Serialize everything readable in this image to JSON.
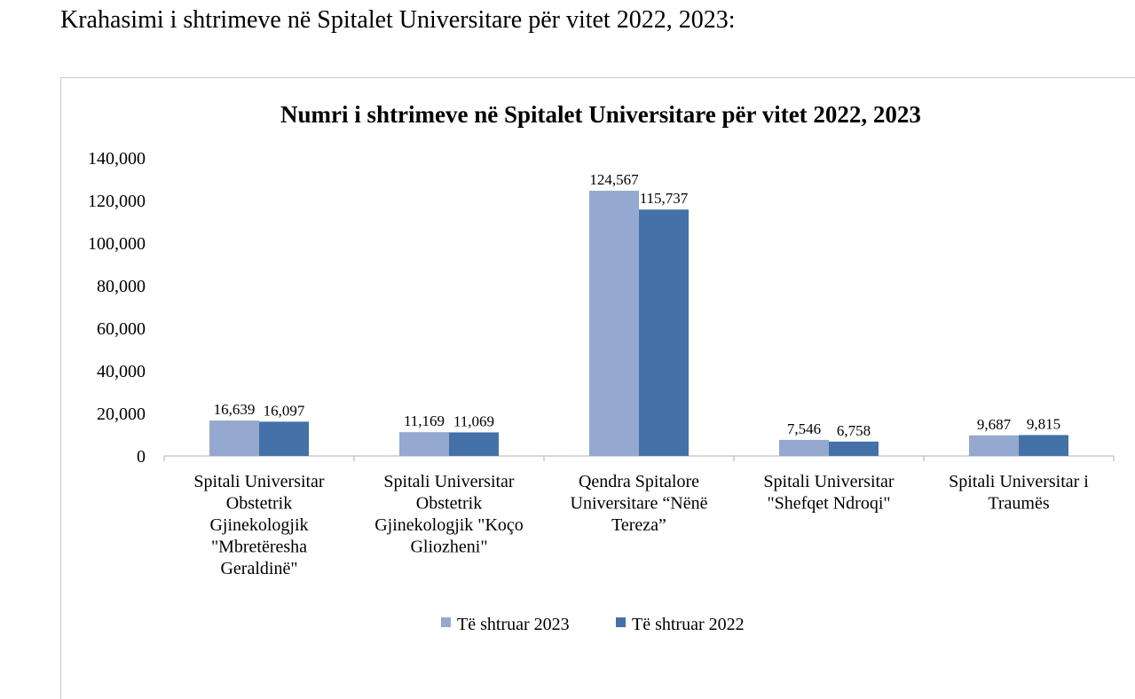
{
  "page": {
    "heading": "Krahasimi i shtrimeve në Spitalet Universitare për vitet 2022, 2023:"
  },
  "colors": {
    "series_2023": "#94a9cf",
    "series_2022": "#4471a8",
    "axis": "#bfbfbf"
  },
  "chart_data": {
    "type": "bar",
    "title": "Numri i shtrimeve në Spitalet Universitare për vitet 2022, 2023",
    "xlabel": "",
    "ylabel": "",
    "ylim": [
      0,
      140000
    ],
    "yticks": [
      0,
      20000,
      40000,
      60000,
      80000,
      100000,
      120000,
      140000
    ],
    "ytick_labels": [
      "0",
      "20,000",
      "40,000",
      "60,000",
      "80,000",
      "100,000",
      "120,000",
      "140,000"
    ],
    "grid": false,
    "legend_position": "bottom",
    "categories": [
      "Spitali Universitar Obstetrik Gjinekologjik \"Mbretëresha Geraldinë\"",
      "Spitali Universitar Obstetrik Gjinekologjik \"Koço Gliozheni\"",
      "Qendra Spitalore Universitare “Nënë Tereza”",
      "Spitali Universitar \"Shefqet Ndroqi\"",
      "Spitali Universitar i Traumës"
    ],
    "category_lines": [
      [
        "Spitali Universitar",
        "Obstetrik",
        "Gjinekologjik",
        "\"Mbretëresha",
        "Geraldinë\""
      ],
      [
        "Spitali Universitar",
        "Obstetrik",
        "Gjinekologjik \"Koço",
        "Gliozheni\""
      ],
      [
        "Qendra Spitalore",
        "Universitare “Nënë",
        "Tereza”"
      ],
      [
        "Spitali Universitar",
        "\"Shefqet Ndroqi\""
      ],
      [
        "Spitali Universitar i",
        "Traumës"
      ]
    ],
    "series": [
      {
        "name": "Të shtruar 2023",
        "values": [
          16639,
          11169,
          124567,
          7546,
          9687
        ],
        "labels": [
          "16,639",
          "11,169",
          "124,567",
          "7,546",
          "9,687"
        ]
      },
      {
        "name": "Të shtruar 2022",
        "values": [
          16097,
          11069,
          115737,
          6758,
          9815
        ],
        "labels": [
          "16,097",
          "11,069",
          "115,737",
          "6,758",
          "9,815"
        ]
      }
    ]
  }
}
